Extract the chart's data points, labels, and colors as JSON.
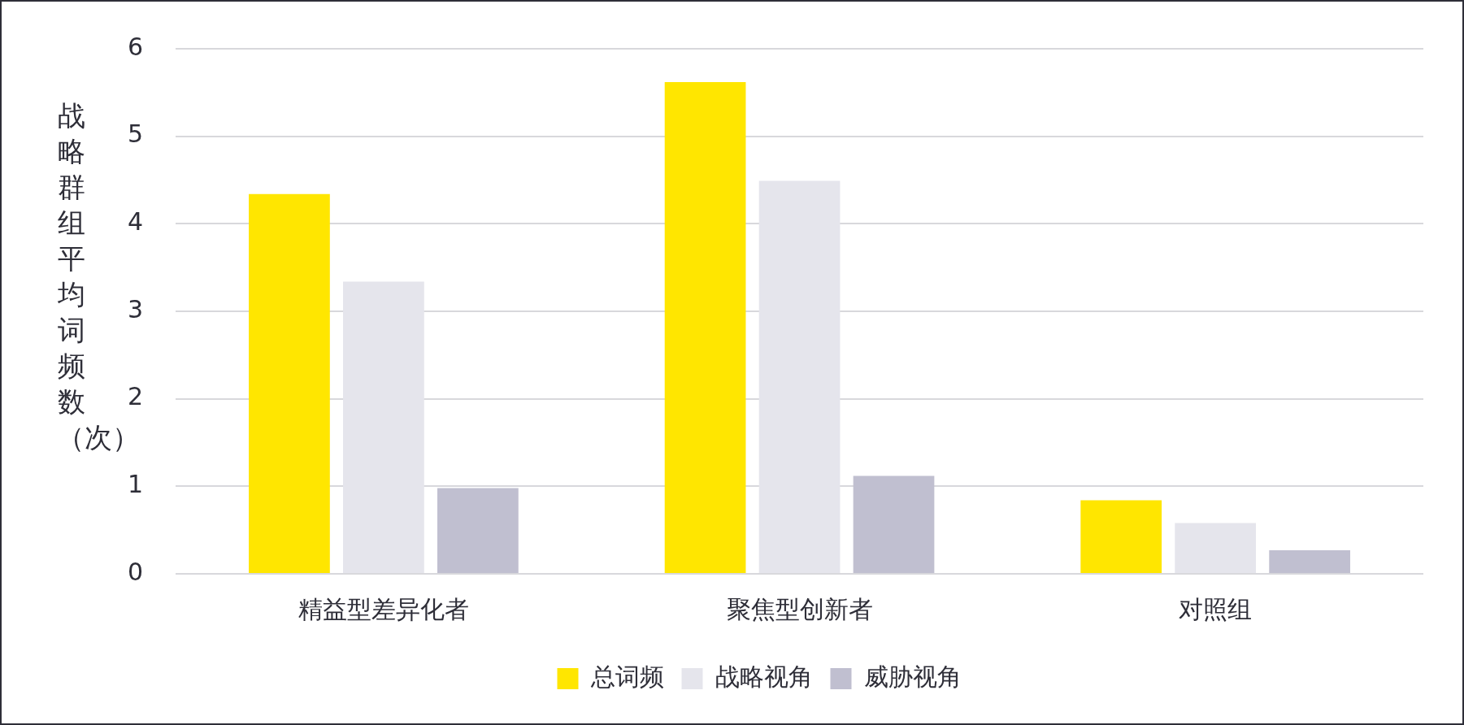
{
  "chart_data": {
    "type": "bar",
    "ylabel": "战略群组平均词频数（次）",
    "categories": [
      "精益型差异化者",
      "聚焦型创新者",
      "对照组"
    ],
    "series": [
      {
        "name": "总词频",
        "color": "#ffe600",
        "values": [
          4.34,
          5.62,
          0.84
        ]
      },
      {
        "name": "战略视角",
        "color": "#e5e5ec",
        "values": [
          3.34,
          4.49,
          0.58
        ]
      },
      {
        "name": "威胁视角",
        "color": "#c0bfd0",
        "values": [
          0.98,
          1.12,
          0.27
        ]
      }
    ],
    "ylim": [
      0,
      6
    ],
    "yticks": [
      0,
      1,
      2,
      3,
      4,
      5,
      6
    ],
    "grid": "y",
    "legend": "bottom"
  }
}
